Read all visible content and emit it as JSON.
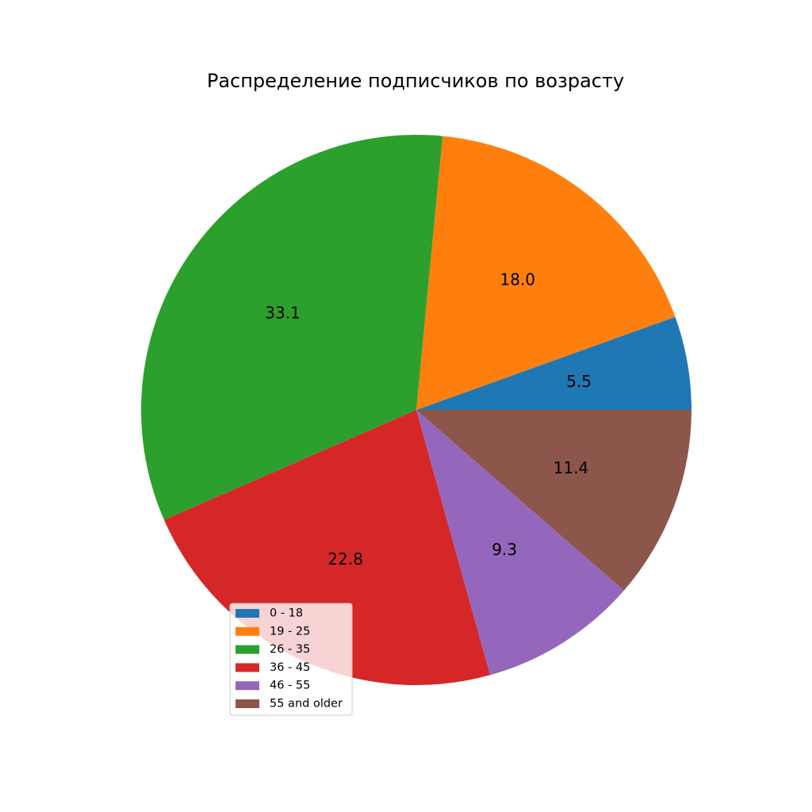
{
  "chart_data": {
    "type": "pie",
    "title": "Распределение подписчиков по возрасту",
    "categories": [
      "0 - 18",
      "19 - 25",
      "26 - 35",
      "36 - 45",
      "46 - 55",
      "55 and older"
    ],
    "values": [
      5.5,
      18.0,
      33.1,
      22.8,
      9.3,
      11.4
    ],
    "data_labels": [
      "5.5",
      "18.0",
      "33.1",
      "22.8",
      "9.3",
      "11.4"
    ],
    "colors": [
      "#1f77b4",
      "#ff7f0e",
      "#2ca02c",
      "#d62728",
      "#9467bd",
      "#8c564b"
    ],
    "start_angle_deg": 0,
    "direction": "counterclockwise",
    "legend": {
      "placement": "lower-left",
      "entries": [
        "0 - 18",
        "19 - 25",
        "26 - 35",
        "36 - 45",
        "46 - 55",
        "55 and older"
      ]
    }
  }
}
